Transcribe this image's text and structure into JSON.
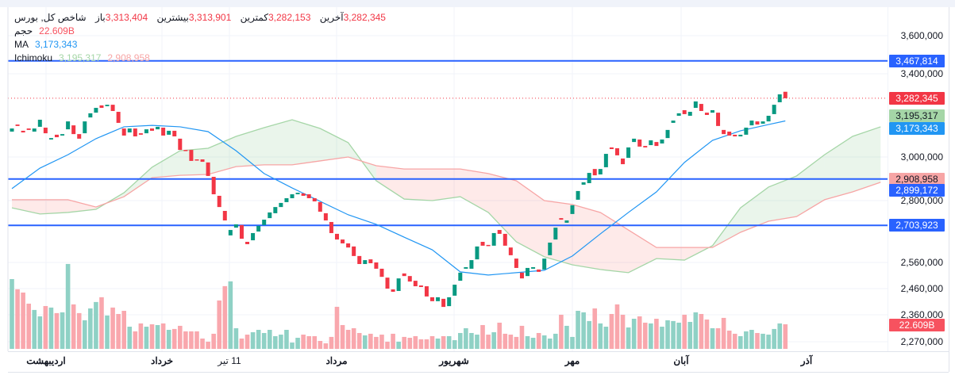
{
  "legend": {
    "title": "شاخص کل, بورس",
    "open_label": "باز",
    "open": "3,313,404",
    "high_label": "بیشترین",
    "high": "3,313,901",
    "low_label": "کمترین",
    "low": "3,282,153",
    "close_label": "آخرین",
    "close": "3,282,345",
    "volume_label": "حجم",
    "volume": "22.609B",
    "ma_label": "MA",
    "ma": "3,173,343",
    "ichimoku_label": "Ichimoku",
    "ichimoku_a": "3,195,317",
    "ichimoku_b": "2,908,958"
  },
  "colors": {
    "up": "#089981",
    "down": "#f23645",
    "up_volume": "#8fd1c5",
    "down_volume": "#f9a7ad",
    "ma": "#2196f3",
    "level_line": "#2962ff",
    "span_a": "#a5d6a7",
    "span_b": "#f7a5a5",
    "cloud_up": "rgba(67,160,71,0.11)",
    "cloud_down": "rgba(244,67,54,0.11)"
  },
  "chart_data": {
    "type": "candlestick",
    "x_tick_labels": [
      {
        "label": "اردیبهشت",
        "bold": true
      },
      {
        "label": "خرداد",
        "bold": true
      },
      {
        "label": "11 تیر",
        "bold": false
      },
      {
        "label": "مرداد",
        "bold": true
      },
      {
        "label": "شهریور",
        "bold": true
      },
      {
        "label": "مهر",
        "bold": true
      },
      {
        "label": "آبان",
        "bold": true
      },
      {
        "label": "آذر",
        "bold": true
      }
    ],
    "y_ticks": [
      {
        "value": 3600000,
        "label": "3,600,000"
      },
      {
        "value": 3400000,
        "label": "3,400,000"
      },
      {
        "value": 3000000,
        "label": "3,000,000"
      },
      {
        "value": 2800000,
        "label": "2,800,000"
      },
      {
        "value": 2560000,
        "label": "2,560,000"
      },
      {
        "value": 2460000,
        "label": "2,460,000"
      },
      {
        "value": 2360000,
        "label": "2,360,000"
      },
      {
        "value": 2270000,
        "label": "2,270,000"
      }
    ],
    "grid": true,
    "candles_open_close": [
      [
        3122000,
        3137000
      ],
      [
        3156000,
        3149000
      ],
      [
        3126000,
        3118000
      ],
      [
        3137000,
        3130000
      ],
      [
        3122000,
        3137000
      ],
      [
        3145000,
        3179000
      ],
      [
        3141000,
        3114000
      ],
      [
        3084000,
        3091000
      ],
      [
        3107000,
        3095000
      ],
      [
        3103000,
        3110000
      ],
      [
        3133000,
        3171000
      ],
      [
        3152000,
        3110000
      ],
      [
        3110000,
        3088000
      ],
      [
        3114000,
        3171000
      ],
      [
        3190000,
        3210000
      ],
      [
        3213000,
        3236000
      ],
      [
        3248000,
        3236000
      ],
      [
        3244000,
        3251000
      ],
      [
        3251000,
        3221000
      ],
      [
        3217000,
        3164000
      ],
      [
        3137000,
        3103000
      ],
      [
        3118000,
        3137000
      ],
      [
        3137000,
        3099000
      ],
      [
        3114000,
        3107000
      ],
      [
        3114000,
        3133000
      ],
      [
        3137000,
        3126000
      ],
      [
        3133000,
        3145000
      ],
      [
        3141000,
        3103000
      ],
      [
        3107000,
        3126000
      ],
      [
        3126000,
        3099000
      ],
      [
        3088000,
        3034000
      ],
      [
        3034000,
        3030000
      ],
      [
        3034000,
        2982000
      ],
      [
        2989000,
        2985000
      ],
      [
        2989000,
        2978000
      ],
      [
        2975000,
        2913000
      ],
      [
        2909000,
        2829000
      ],
      [
        2822000,
        2775000
      ],
      [
        2760000,
        2723000
      ],
      [
        2665000,
        2686000
      ],
      [
        2695000,
        2708000
      ],
      [
        2705000,
        2652000
      ],
      [
        2640000,
        2631000
      ],
      [
        2646000,
        2674000
      ],
      [
        2680000,
        2702000
      ],
      [
        2705000,
        2726000
      ],
      [
        2732000,
        2754000
      ],
      [
        2751000,
        2775000
      ],
      [
        2775000,
        2791000
      ],
      [
        2794000,
        2811000
      ],
      [
        2811000,
        2829000
      ],
      [
        2829000,
        2836000
      ],
      [
        2833000,
        2822000
      ],
      [
        2829000,
        2811000
      ],
      [
        2811000,
        2797000
      ],
      [
        2794000,
        2757000
      ],
      [
        2751000,
        2723000
      ],
      [
        2717000,
        2674000
      ],
      [
        2671000,
        2649000
      ],
      [
        2649000,
        2634000
      ],
      [
        2634000,
        2618000
      ],
      [
        2622000,
        2585000
      ],
      [
        2585000,
        2554000
      ],
      [
        2554000,
        2569000
      ],
      [
        2572000,
        2557000
      ],
      [
        2560000,
        2536000
      ],
      [
        2536000,
        2505000
      ],
      [
        2502000,
        2460000
      ],
      [
        2457000,
        2448000
      ],
      [
        2451000,
        2499000
      ],
      [
        2518000,
        2508000
      ],
      [
        2508000,
        2487000
      ],
      [
        2490000,
        2469000
      ],
      [
        2472000,
        2466000
      ],
      [
        2469000,
        2430000
      ],
      [
        2427000,
        2412000
      ],
      [
        2412000,
        2427000
      ],
      [
        2421000,
        2390000
      ],
      [
        2393000,
        2427000
      ],
      [
        2433000,
        2475000
      ],
      [
        2490000,
        2521000
      ],
      [
        2536000,
        2542000
      ],
      [
        2536000,
        2569000
      ],
      [
        2572000,
        2622000
      ],
      [
        2640000,
        2625000
      ],
      [
        2628000,
        2625000
      ],
      [
        2625000,
        2674000
      ],
      [
        2686000,
        2671000
      ],
      [
        2671000,
        2625000
      ],
      [
        2618000,
        2588000
      ],
      [
        2575000,
        2539000
      ],
      [
        2521000,
        2499000
      ],
      [
        2508000,
        2539000
      ],
      [
        2536000,
        2542000
      ],
      [
        2533000,
        2524000
      ],
      [
        2533000,
        2575000
      ],
      [
        2588000,
        2637000
      ],
      [
        2649000,
        2695000
      ],
      [
        2732000,
        2726000
      ],
      [
        2714000,
        2723000
      ],
      [
        2748000,
        2782000
      ],
      [
        2804000,
        2844000
      ],
      [
        2873000,
        2884000
      ],
      [
        2880000,
        2927000
      ],
      [
        2945000,
        2916000
      ],
      [
        2920000,
        2945000
      ],
      [
        2953000,
        3015000
      ],
      [
        3046000,
        3038000
      ],
      [
        3042000,
        3008000
      ],
      [
        2993000,
        2967000
      ],
      [
        2996000,
        3046000
      ],
      [
        3072000,
        3088000
      ],
      [
        3084000,
        3050000
      ],
      [
        3053000,
        3046000
      ],
      [
        3057000,
        3080000
      ],
      [
        3072000,
        3053000
      ],
      [
        3065000,
        3084000
      ],
      [
        3091000,
        3130000
      ],
      [
        3164000,
        3175000
      ],
      [
        3198000,
        3210000
      ],
      [
        3225000,
        3206000
      ],
      [
        3198000,
        3217000
      ],
      [
        3236000,
        3267000
      ],
      [
        3255000,
        3221000
      ],
      [
        3213000,
        3202000
      ],
      [
        3213000,
        3225000
      ],
      [
        3213000,
        3149000
      ],
      [
        3130000,
        3110000
      ],
      [
        3122000,
        3103000
      ],
      [
        3107000,
        3099000
      ],
      [
        3099000,
        3107000
      ],
      [
        3107000,
        3141000
      ],
      [
        3152000,
        3175000
      ],
      [
        3171000,
        3156000
      ],
      [
        3160000,
        3171000
      ],
      [
        3171000,
        3198000
      ],
      [
        3206000,
        3251000
      ],
      [
        3263000,
        3301000
      ],
      [
        3313404,
        3282345
      ]
    ],
    "volume_billions": [
      64.2,
      54.8,
      51.8,
      41.6,
      35.8,
      29.9,
      39.4,
      38.0,
      32.9,
      33.6,
      78.1,
      40.9,
      32.9,
      26.3,
      37.2,
      43.1,
      47.5,
      30.7,
      38.0,
      32.1,
      35.0,
      20.4,
      16.1,
      23.4,
      20.4,
      22.6,
      21.9,
      23.4,
      17.5,
      18.3,
      21.2,
      16.1,
      16.1,
      16.1,
      9.5,
      6.6,
      13.9,
      44.5,
      57.7,
      62.1,
      19.0,
      9.5,
      13.1,
      15.3,
      17.5,
      14.6,
      17.5,
      11.7,
      13.1,
      17.5,
      5.8,
      10.2,
      13.1,
      11.7,
      11.7,
      7.3,
      5.1,
      11.0,
      38.7,
      21.9,
      17.5,
      19.0,
      14.6,
      12.4,
      13.9,
      11.0,
      13.1,
      6.6,
      13.9,
      6.6,
      11.0,
      10.2,
      11.7,
      8.8,
      8.8,
      11.7,
      9.5,
      11.7,
      11.7,
      8.0,
      14.6,
      19.0,
      14.6,
      13.1,
      21.9,
      13.1,
      15.3,
      24.1,
      13.9,
      13.1,
      11.0,
      21.2,
      11.7,
      10.2,
      14.6,
      12.4,
      9.5,
      13.9,
      31.4,
      21.2,
      11.0,
      35.0,
      33.6,
      25.6,
      37.2,
      23.4,
      20.4,
      32.1,
      40.9,
      31.4,
      19.7,
      27.7,
      29.9,
      24.1,
      23.4,
      27.7,
      20.4,
      26.3,
      25.6,
      24.1,
      31.4,
      24.8,
      33.6,
      32.1,
      27.0,
      19.0,
      19.0,
      28.5,
      16.8,
      13.9,
      11.7,
      16.1,
      17.5,
      14.6,
      13.9,
      13.1,
      18.3,
      23.4,
      22.609
    ],
    "ma_values": [
      2855000,
      2949000,
      3011000,
      3088000,
      3145000,
      3152000,
      3145000,
      3122000,
      3030000,
      2924000,
      2858000,
      2797000,
      2745000,
      2708000,
      2658000,
      2609000,
      2524000,
      2512000,
      2521000,
      2530000,
      2585000,
      2671000,
      2754000,
      2840000,
      2975000,
      3080000,
      3126000,
      3156000,
      3173343
    ],
    "ichimoku_span_a": [
      2772000,
      2748000,
      2754000,
      2766000,
      2836000,
      2953000,
      3030000,
      3042000,
      3099000,
      3141000,
      3179000,
      3137000,
      3069000,
      2891000,
      2807000,
      2800000,
      2818000,
      2754000,
      2640000,
      2582000,
      2551000,
      2533000,
      2521000,
      2575000,
      2569000,
      2625000,
      2772000,
      2862000,
      2913000,
      3011000,
      3099000,
      3145000
    ],
    "ichimoku_span_b": [
      2804000,
      2804000,
      2804000,
      2775000,
      2818000,
      2905000,
      2916000,
      2920000,
      2956000,
      2964000,
      2964000,
      2982000,
      3000000,
      2960000,
      2945000,
      2945000,
      2945000,
      2924000,
      2891000,
      2800000,
      2785000,
      2754000,
      2686000,
      2618000,
      2618000,
      2618000,
      2677000,
      2720000,
      2738000,
      2804000,
      2840000,
      2884000
    ],
    "horizontal_levels": [
      {
        "value": 3467814,
        "label": "3,467,814"
      },
      {
        "value": 2899172,
        "label": "2,899,172"
      },
      {
        "value": 2703923,
        "label": "2,703,923"
      }
    ],
    "last_price": {
      "value": 3282345,
      "label": "3,282,345"
    },
    "axis_tags": {
      "span_a": "3,195,317",
      "ma": "3,173,343",
      "span_b": "2,908,958",
      "volume": "22.609B"
    }
  }
}
